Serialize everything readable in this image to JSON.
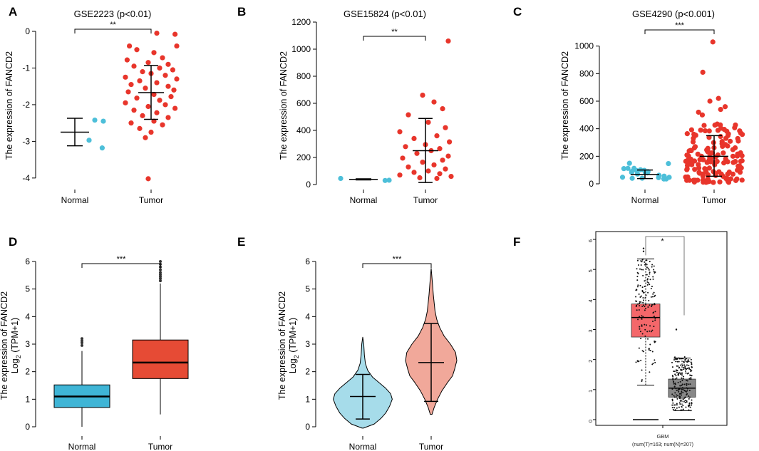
{
  "colors": {
    "normal": "#4dbfd9",
    "tumor": "#e8352b",
    "normal_box": "#3fb5d6",
    "tumor_box": "#e64b35",
    "normal_violin": "#a6dcea",
    "tumor_violin": "#f1a89a",
    "gepia_tumor": "#f4676a",
    "gepia_normal": "#888888",
    "gepia_sig": "#ff2a2a"
  },
  "chart_data": [
    {
      "panel": "A",
      "type": "scatter",
      "title": "GSE2223  (p<0.01)",
      "ylabel": "The expression of FANCD2",
      "categories": [
        "Normal",
        "Tumor"
      ],
      "ylim": [
        -4.1,
        0
      ],
      "yticks": [
        0,
        -1,
        -2,
        -3,
        -4
      ],
      "significance": "**",
      "summary": [
        {
          "mean": -2.75,
          "low": -3.12,
          "high": -2.37
        },
        {
          "mean": -1.67,
          "low": -2.4,
          "high": -0.93
        }
      ],
      "points": [
        [
          [
            0.35,
            -2.42
          ],
          [
            0.5,
            -2.45
          ],
          [
            0.25,
            -2.97
          ],
          [
            0.48,
            -3.18
          ]
        ],
        [
          [
            0.1,
            -0.05
          ],
          [
            0.42,
            -0.08
          ],
          [
            -0.38,
            -0.4
          ],
          [
            -0.25,
            -0.5
          ],
          [
            0.05,
            -0.58
          ],
          [
            0.45,
            -0.4
          ],
          [
            0.2,
            -0.72
          ],
          [
            -0.42,
            -0.78
          ],
          [
            -0.05,
            -0.85
          ],
          [
            0.3,
            -0.9
          ],
          [
            -0.3,
            -0.95
          ],
          [
            0.15,
            -1.0
          ],
          [
            0.38,
            -1.05
          ],
          [
            -0.15,
            -1.1
          ],
          [
            0.0,
            -1.15
          ],
          [
            0.25,
            -1.2
          ],
          [
            -0.45,
            -1.25
          ],
          [
            0.45,
            -1.3
          ],
          [
            -0.2,
            -1.35
          ],
          [
            0.1,
            -1.4
          ],
          [
            -0.35,
            -1.45
          ],
          [
            0.3,
            -1.5
          ],
          [
            -0.1,
            -1.55
          ],
          [
            0.4,
            -1.6
          ],
          [
            -0.4,
            -1.65
          ],
          [
            0.05,
            -1.72
          ],
          [
            0.35,
            -1.78
          ],
          [
            -0.25,
            -1.82
          ],
          [
            0.15,
            -1.88
          ],
          [
            -0.45,
            -1.95
          ],
          [
            0.25,
            -2.0
          ],
          [
            -0.05,
            -2.05
          ],
          [
            0.42,
            -2.1
          ],
          [
            -0.3,
            -2.15
          ],
          [
            0.1,
            -2.22
          ],
          [
            -0.15,
            -2.3
          ],
          [
            0.3,
            -2.35
          ],
          [
            0.05,
            -2.45
          ],
          [
            -0.35,
            -2.5
          ],
          [
            0.2,
            -2.55
          ],
          [
            -0.2,
            -2.65
          ],
          [
            0.0,
            -2.75
          ],
          [
            -0.1,
            -2.9
          ],
          [
            -0.05,
            -4.02
          ]
        ]
      ]
    },
    {
      "panel": "B",
      "type": "scatter",
      "title": "GSE15824  (p<0.01)",
      "ylabel": "The expression of FANCD2",
      "categories": [
        "Normal",
        "Tumor"
      ],
      "ylim": [
        0,
        1200
      ],
      "yticks": [
        0,
        200,
        400,
        600,
        800,
        1000,
        1200
      ],
      "significance": "**",
      "summary": [
        {
          "mean": 38,
          "low": 34,
          "high": 42
        },
        {
          "mean": 250,
          "low": 15,
          "high": 488
        }
      ],
      "points": [
        [
          [
            -0.4,
            45
          ],
          [
            0.45,
            32
          ],
          [
            0.38,
            30
          ]
        ],
        [
          [
            0.4,
            1060
          ],
          [
            -0.05,
            660
          ],
          [
            0.15,
            610
          ],
          [
            0.3,
            560
          ],
          [
            -0.3,
            515
          ],
          [
            0.05,
            460
          ],
          [
            0.35,
            420
          ],
          [
            -0.45,
            390
          ],
          [
            0.2,
            360
          ],
          [
            -0.2,
            340
          ],
          [
            0.42,
            315
          ],
          [
            0.0,
            295
          ],
          [
            -0.35,
            280
          ],
          [
            0.25,
            265
          ],
          [
            0.1,
            250
          ],
          [
            -0.15,
            230
          ],
          [
            0.4,
            210
          ],
          [
            -0.4,
            195
          ],
          [
            0.3,
            180
          ],
          [
            -0.05,
            165
          ],
          [
            0.15,
            145
          ],
          [
            -0.3,
            130
          ],
          [
            0.35,
            115
          ],
          [
            0.05,
            100
          ],
          [
            -0.2,
            90
          ],
          [
            0.25,
            80
          ],
          [
            -0.45,
            70
          ],
          [
            0.45,
            60
          ],
          [
            -0.1,
            50
          ],
          [
            0.2,
            45
          ]
        ]
      ]
    },
    {
      "panel": "C",
      "type": "scatter",
      "title": "GSE4290  (p<0.001)",
      "ylabel": "The expression of FANCD2",
      "categories": [
        "Normal",
        "Tumor"
      ],
      "ylim": [
        0,
        1050
      ],
      "yticks": [
        0,
        200,
        400,
        600,
        800,
        1000
      ],
      "significance": "***",
      "summary": [
        {
          "mean": 68,
          "low": 38,
          "high": 100
        },
        {
          "mean": 200,
          "low": 55,
          "high": 350
        }
      ],
      "normal_count": 23,
      "tumor_count": 157
    },
    {
      "panel": "D",
      "type": "box",
      "ylabel": "The expression of FANCD2",
      "ylabel2": "Log",
      "ylabel2_sub": "2",
      "ylabel2_rest": " (TPM+1)",
      "categories": [
        "Normal",
        "Tumor"
      ],
      "ylim": [
        0,
        6
      ],
      "yticks": [
        0,
        1,
        2,
        3,
        4,
        5,
        6
      ],
      "significance": "***",
      "boxes": [
        {
          "min": 0.0,
          "q1": 0.7,
          "median": 1.1,
          "q3": 1.52,
          "max": 2.75,
          "outliers": [
            2.95,
            3.05,
            3.12,
            3.2
          ]
        },
        {
          "min": 0.45,
          "q1": 1.75,
          "median": 2.33,
          "q3": 3.15,
          "max": 5.2,
          "outliers": [
            5.3,
            5.38,
            5.45,
            5.52,
            5.6,
            5.7,
            5.8,
            5.9,
            6.0
          ]
        }
      ]
    },
    {
      "panel": "E",
      "type": "violin",
      "ylabel": "The expression of FANCD2",
      "ylabel2": "Log",
      "ylabel2_sub": "2",
      "ylabel2_rest": " (TPM+1)",
      "categories": [
        "Normal",
        "Tumor"
      ],
      "ylim": [
        0,
        6
      ],
      "yticks": [
        0,
        1,
        2,
        3,
        4,
        5,
        6
      ],
      "significance": "***",
      "summary": [
        {
          "mean": 1.1,
          "low": 0.28,
          "high": 1.9
        },
        {
          "mean": 2.33,
          "low": 0.92,
          "high": 3.75
        }
      ],
      "violins": [
        {
          "range": [
            -0.05,
            3.25
          ],
          "profile": [
            [
              -0.05,
              0.02
            ],
            [
              0.1,
              0.35
            ],
            [
              0.3,
              0.55
            ],
            [
              0.5,
              0.7
            ],
            [
              0.75,
              0.82
            ],
            [
              1.0,
              0.9
            ],
            [
              1.2,
              0.85
            ],
            [
              1.4,
              0.7
            ],
            [
              1.6,
              0.5
            ],
            [
              1.8,
              0.3
            ],
            [
              2.05,
              0.15
            ],
            [
              2.3,
              0.08
            ],
            [
              2.6,
              0.05
            ],
            [
              3.0,
              0.03
            ],
            [
              3.25,
              0.0
            ]
          ]
        },
        {
          "range": [
            0.45,
            5.75
          ],
          "profile": [
            [
              0.45,
              0.02
            ],
            [
              0.7,
              0.07
            ],
            [
              1.0,
              0.15
            ],
            [
              1.3,
              0.25
            ],
            [
              1.6,
              0.38
            ],
            [
              1.85,
              0.5
            ],
            [
              2.1,
              0.55
            ],
            [
              2.4,
              0.6
            ],
            [
              2.7,
              0.57
            ],
            [
              3.0,
              0.45
            ],
            [
              3.3,
              0.3
            ],
            [
              3.6,
              0.2
            ],
            [
              3.9,
              0.13
            ],
            [
              4.2,
              0.09
            ],
            [
              4.5,
              0.07
            ],
            [
              4.8,
              0.05
            ],
            [
              5.2,
              0.03
            ],
            [
              5.75,
              0.0
            ]
          ]
        }
      ]
    },
    {
      "panel": "F",
      "type": "box",
      "ylim": [
        0,
        6
      ],
      "yticks": [
        0,
        1,
        2,
        3,
        4,
        5,
        6
      ],
      "significance": "*",
      "xlabel": "GBM",
      "xlabel2": "(num(T)=163; num(N)=207)",
      "boxes": [
        {
          "min": 1.15,
          "q1": 2.75,
          "median": 3.4,
          "q3": 3.85,
          "max": 5.35,
          "outliers": [
            5.6,
            5.7
          ]
        },
        {
          "min": 0.3,
          "q1": 0.75,
          "median": 1.05,
          "q3": 1.35,
          "max": 2.05,
          "outliers": [
            3.0
          ]
        }
      ]
    }
  ]
}
